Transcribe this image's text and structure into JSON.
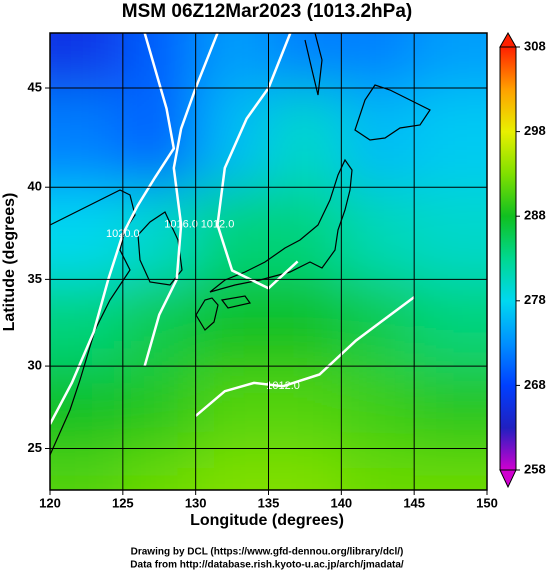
{
  "chart_data": {
    "type": "map",
    "title": "MSM 06Z12Mar2023 (1013.2hPa)",
    "xlabel": "Longitude (degrees)",
    "ylabel": "Latitude  (degrees)",
    "xlim": [
      120,
      150
    ],
    "ylim": [
      22.4,
      47.6
    ],
    "xticks": [
      120,
      125,
      130,
      135,
      140,
      145,
      150
    ],
    "yticks": [
      25,
      30,
      35,
      40,
      45
    ],
    "yscale": "mercator",
    "grid": true,
    "colorbar": {
      "clim": [
        258,
        308
      ],
      "ticks": [
        258,
        268,
        278,
        288,
        298,
        308
      ],
      "colormap": [
        "#d000d0",
        "#2020c0",
        "#0040ff",
        "#0090ff",
        "#00d8f0",
        "#00d890",
        "#10c020",
        "#80e000",
        "#e8f000",
        "#ffa000",
        "#ff2000"
      ]
    },
    "field": {
      "lon_edges": [
        120,
        125,
        130,
        135,
        140,
        145,
        150
      ],
      "lat_edges": [
        22.4,
        25,
        30,
        35,
        40,
        45,
        47.6
      ],
      "values": [
        [
          291,
          292,
          293,
          293,
          292,
          292
        ],
        [
          288,
          289,
          291,
          291,
          290,
          289
        ],
        [
          284,
          286,
          288,
          288,
          286,
          284
        ],
        [
          278,
          280,
          284,
          284,
          281,
          280
        ],
        [
          272,
          270,
          276,
          280,
          276,
          277
        ],
        [
          266,
          270,
          274,
          272,
          272,
          274
        ]
      ]
    },
    "isobars": [
      {
        "label": "1020.0",
        "color": "#ffffff",
        "lon": [
          126.5,
          128,
          128.5,
          127.2,
          126,
          125,
          124,
          123,
          121.5,
          120
        ],
        "lat": [
          47.6,
          44,
          42,
          40.5,
          39,
          37.5,
          35,
          32,
          29,
          26.5
        ]
      },
      {
        "label": "1016.0",
        "color": "#ffffff",
        "lon": [
          131.5,
          130,
          129,
          128.5,
          129,
          128.7,
          127.5,
          126.5
        ],
        "lat": [
          47.6,
          45,
          43,
          41,
          38,
          35,
          33,
          30
        ]
      },
      {
        "label": "1012.0",
        "color": "#ffffff",
        "lon": [
          136.5,
          135,
          133.5,
          132,
          131.5,
          132.5,
          135,
          137
        ],
        "lat": [
          47.6,
          45,
          43.5,
          41,
          38,
          35.5,
          34.5,
          36
        ]
      },
      {
        "label": "1012.0",
        "color": "#ffffff",
        "lon": [
          130,
          132,
          134,
          136,
          138.5,
          141,
          145
        ],
        "lat": [
          27,
          28.5,
          29,
          28.8,
          29.5,
          31.5,
          34
        ]
      }
    ],
    "credits": [
      "Drawing by DCL (https://www.gfd-dennou.org/library/dcl/)",
      "Data from http://database.rish.kyoto-u.ac.jp/arch/jmadata/"
    ]
  }
}
